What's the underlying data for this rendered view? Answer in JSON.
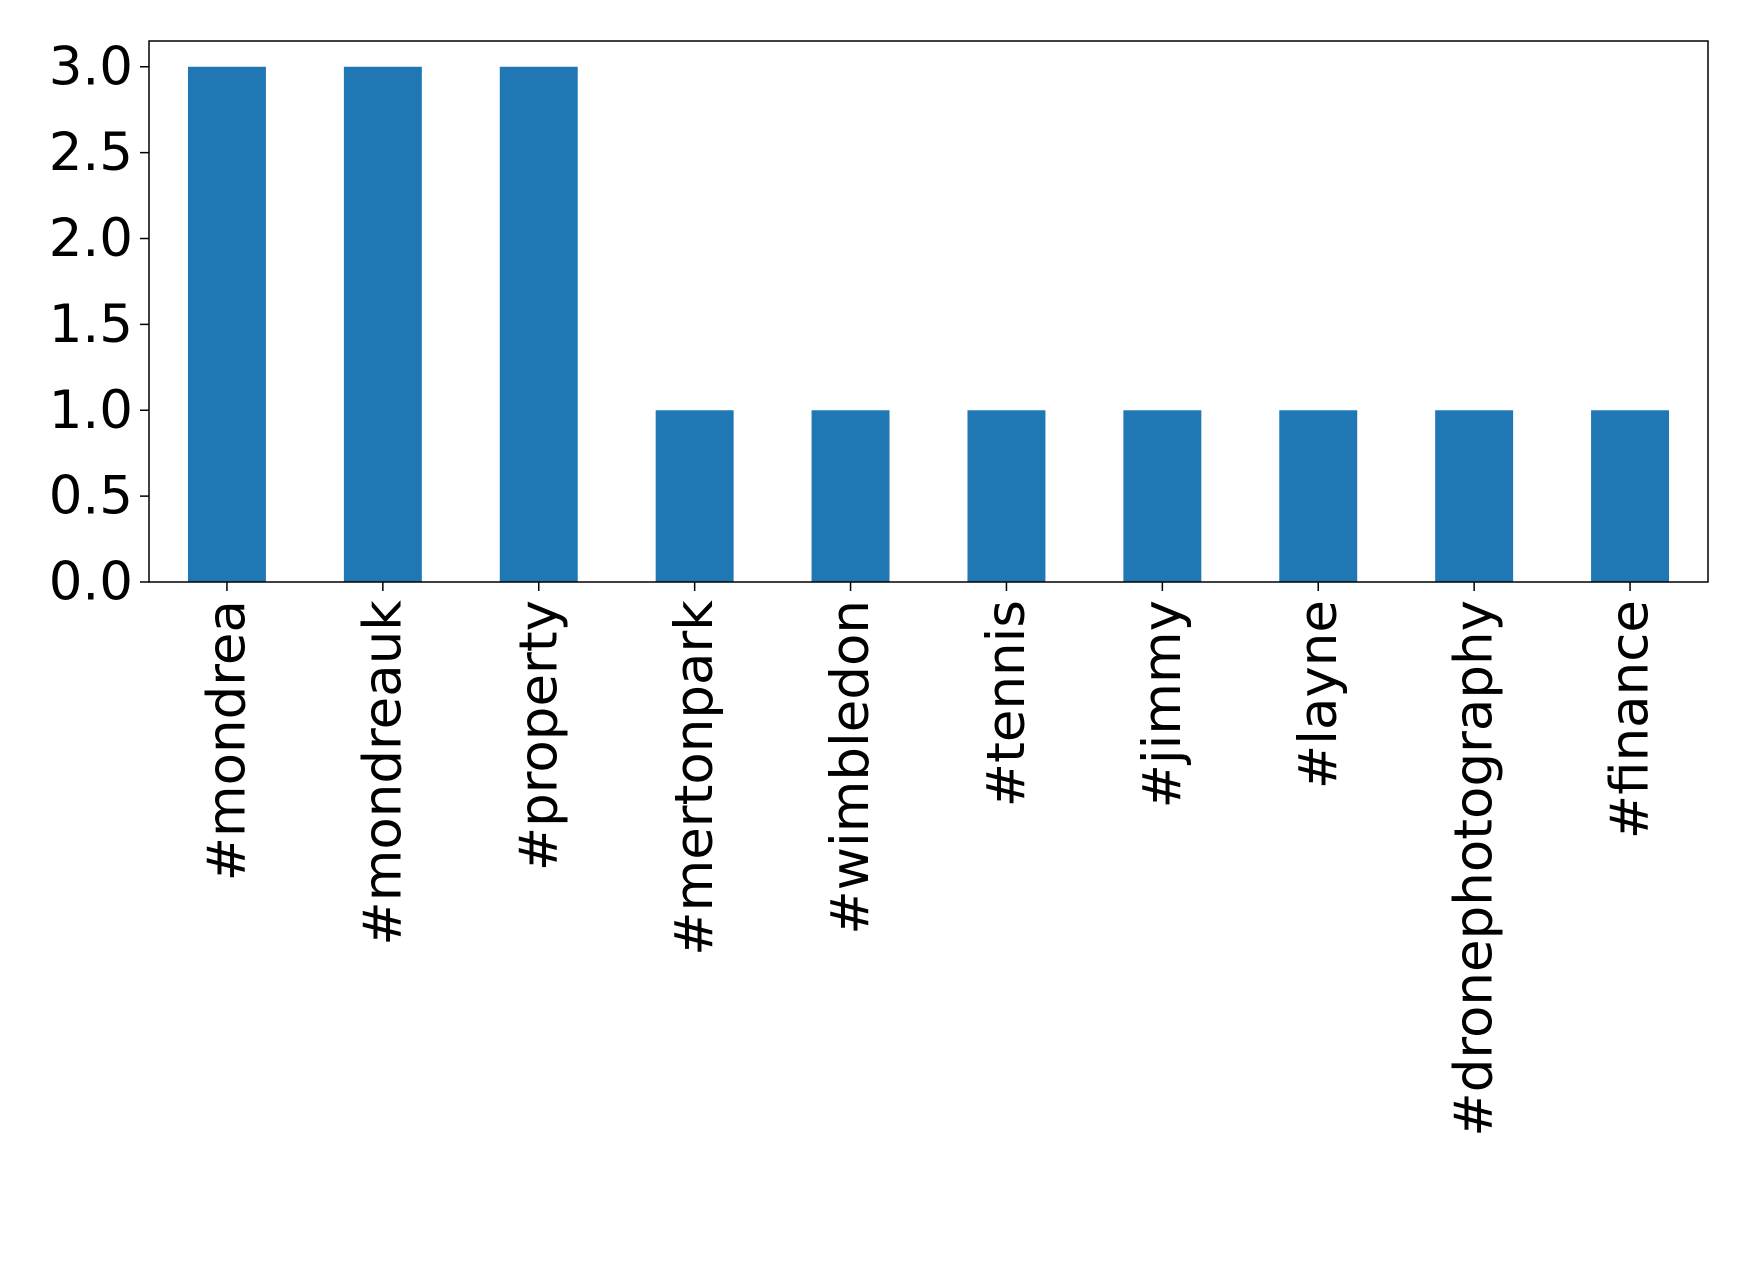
{
  "chart_data": {
    "type": "bar",
    "categories": [
      "#mondrea",
      "#mondreauk",
      "#property",
      "#mertonpark",
      "#wimbledon",
      "#tennis",
      "#jimmy",
      "#layne",
      "#dronephotography",
      "#finance"
    ],
    "values": [
      3,
      3,
      3,
      1,
      1,
      1,
      1,
      1,
      1,
      1
    ],
    "color": "#1f77b4",
    "ylim": [
      0,
      3.15
    ],
    "yticks": [
      {
        "value": 0,
        "label": "0.0"
      },
      {
        "value": 0.5,
        "label": "0.5"
      },
      {
        "value": 1,
        "label": "1.0"
      },
      {
        "value": 1.5,
        "label": "1.5"
      },
      {
        "value": 2,
        "label": "2.0"
      },
      {
        "value": 2.5,
        "label": "2.5"
      },
      {
        "value": 3,
        "label": "3.0"
      }
    ],
    "grid": false
  }
}
